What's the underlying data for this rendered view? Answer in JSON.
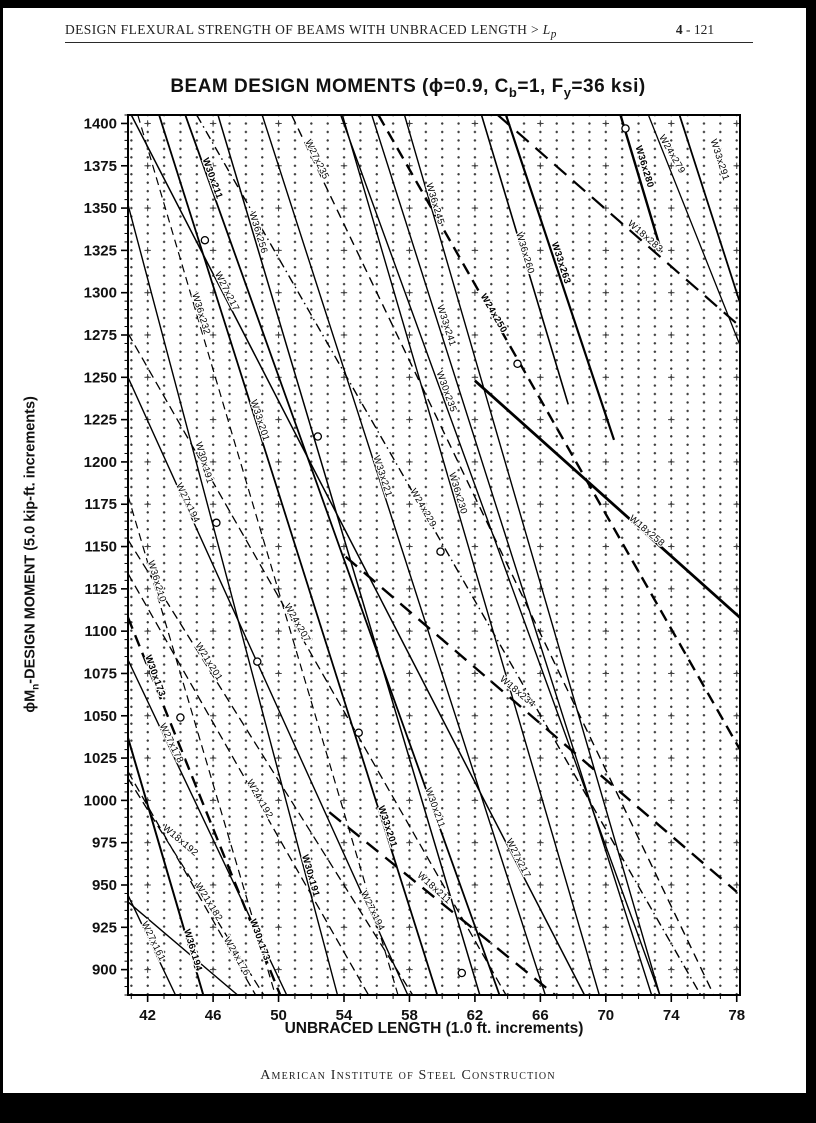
{
  "page": {
    "header": {
      "title_main": "DESIGN FLEXURAL STRENGTH OF BEAMS WITH UNBRACED LENGTH > ",
      "title_var": "L",
      "title_var_sub": "p",
      "page_number_bold": "4",
      "page_number_rest": " - 121"
    },
    "footer": {
      "text": "American Institute of Steel Construction"
    }
  },
  "chart": {
    "title": {
      "part1": "BEAM DESIGN MOMENTS (ϕ=0.9, C",
      "sub1": "b",
      "part2": "=1, F",
      "sub2": "y",
      "part3": "=36 ksi)"
    },
    "x_axis": {
      "label": "UNBRACED LENGTH (1.0 ft. increments)"
    },
    "y_axis": {
      "label_part1": "ϕM",
      "label_sub": "n",
      "label_part2": "-DESIGN MOMENT (5.0 kip-ft. increments)"
    }
  },
  "chart_data": {
    "type": "line",
    "title": "BEAM DESIGN MOMENTS (ϕ=0.9, Cb=1, Fy=36 ksi)",
    "xlabel": "UNBRACED LENGTH (1.0 ft. increments)",
    "ylabel": "ϕMn-DESIGN MOMENT (5.0 kip-ft. increments)",
    "xlim": [
      40.8,
      78.2
    ],
    "ylim": [
      885,
      1405
    ],
    "x_major_ticks": [
      42,
      46,
      50,
      54,
      58,
      62,
      66,
      70,
      74,
      78
    ],
    "x_minor_step": 1,
    "y_major_ticks": [
      900,
      925,
      950,
      975,
      1000,
      1025,
      1050,
      1075,
      1100,
      1125,
      1150,
      1175,
      1200,
      1225,
      1250,
      1275,
      1300,
      1325,
      1350,
      1375,
      1400
    ],
    "y_minor_step": 5,
    "grid": "dots at 1 ft x 5 kip-ft, plus marks at 4 ft x 25 kip-ft",
    "legend_position": "labels along curves",
    "series": [
      {
        "name": "W36x280",
        "style": "solid",
        "width": 2.4,
        "points": [
          [
            70.9,
            1405
          ],
          [
            73.4,
            1324
          ]
        ],
        "labels": [
          {
            "x": 72.2,
            "y": 1374,
            "rot": 73,
            "bold": true
          }
        ]
      },
      {
        "name": "W24x279",
        "style": "solid",
        "width": 1.3,
        "points": [
          [
            72.6,
            1405
          ],
          [
            78.2,
            1269
          ]
        ],
        "labels": [
          {
            "x": 73.9,
            "y": 1381,
            "rot": 60,
            "bold": false
          }
        ]
      },
      {
        "name": "W33x291",
        "style": "solid",
        "width": 1.8,
        "points": [
          [
            74.5,
            1405
          ],
          [
            78.2,
            1294
          ]
        ],
        "labels": [
          {
            "x": 76.8,
            "y": 1378,
            "rot": 72,
            "bold": false
          }
        ]
      },
      {
        "name": "W18x283",
        "style": "dashed",
        "dash": "16,9",
        "width": 2.2,
        "points": [
          [
            63.4,
            1405
          ],
          [
            78.2,
            1280
          ]
        ],
        "labels": [
          {
            "x": 72.3,
            "y": 1332,
            "rot": 41,
            "bold": false
          }
        ]
      },
      {
        "name": "W33x263",
        "style": "solid",
        "width": 2.2,
        "points": [
          [
            63.9,
            1405
          ],
          [
            70.5,
            1213
          ]
        ],
        "labels": [
          {
            "x": 67.1,
            "y": 1317,
            "rot": 72,
            "bold": true
          }
        ]
      },
      {
        "name": "W36x260",
        "style": "solid",
        "width": 1.6,
        "points": [
          [
            62.4,
            1405
          ],
          [
            67.7,
            1234
          ]
        ],
        "labels": [
          {
            "x": 64.9,
            "y": 1323,
            "rot": 73,
            "bold": false
          }
        ]
      },
      {
        "name": "W24x250",
        "style": "dashed",
        "dash": "12,7",
        "width": 2.4,
        "points": [
          [
            56.1,
            1405
          ],
          [
            78.2,
            1030
          ]
        ],
        "labels": [
          {
            "x": 63.0,
            "y": 1287,
            "rot": 60,
            "bold": true
          }
        ]
      },
      {
        "name": "W36x245",
        "style": "solid",
        "width": 1.4,
        "points": [
          [
            57.7,
            1405
          ],
          [
            73.3,
            885
          ]
        ],
        "labels": [
          {
            "x": 59.4,
            "y": 1352,
            "rot": 73,
            "bold": false
          }
        ]
      },
      {
        "name": "W33x241",
        "style": "solid",
        "width": 1.4,
        "points": [
          [
            55.7,
            1405
          ],
          [
            72.8,
            885
          ]
        ],
        "labels": [
          {
            "x": 60.1,
            "y": 1280,
            "rot": 72,
            "bold": false
          }
        ]
      },
      {
        "name": "W30x235",
        "style": "solid",
        "width": 1.4,
        "points": [
          [
            53.8,
            1405
          ],
          [
            73.3,
            885
          ]
        ],
        "labels": [
          {
            "x": 60.1,
            "y": 1241,
            "rot": 70,
            "bold": false
          }
        ]
      },
      {
        "name": "W36x230",
        "style": "solid",
        "width": 1.4,
        "points": [
          [
            53.9,
            1405
          ],
          [
            69.6,
            885
          ]
        ],
        "labels": [
          {
            "x": 60.8,
            "y": 1181,
            "rot": 73,
            "bold": false
          }
        ]
      },
      {
        "name": "W33x221",
        "style": "solid",
        "width": 1.4,
        "points": [
          [
            49.0,
            1405
          ],
          [
            66.3,
            885
          ]
        ],
        "labels": [
          {
            "x": 56.2,
            "y": 1191,
            "rot": 72,
            "bold": false
          }
        ]
      },
      {
        "name": "W24x229",
        "style": "dashdot",
        "width": 1.4,
        "points": [
          [
            45.0,
            1405
          ],
          [
            75.8,
            885
          ]
        ],
        "labels": [
          {
            "x": 58.7,
            "y": 1172,
            "rot": 60,
            "bold": false
          }
        ]
      },
      {
        "name": "W27x235",
        "style": "dashed",
        "dash": "9,6",
        "width": 1.4,
        "points": [
          [
            50.8,
            1405
          ],
          [
            76.6,
            885
          ]
        ],
        "labels": [
          {
            "x": 52.2,
            "y": 1378,
            "rot": 64,
            "bold": false
          }
        ]
      },
      {
        "name": "W36x256",
        "style": "solid",
        "width": 1.5,
        "points": [
          [
            46.3,
            1405
          ],
          [
            62.3,
            885
          ]
        ],
        "labels": [
          {
            "x": 48.6,
            "y": 1335,
            "rot": 73,
            "bold": false
          }
        ]
      },
      {
        "name": "W30x211",
        "style": "solid",
        "width": 1.8,
        "points": [
          [
            44.3,
            1405
          ],
          [
            63.5,
            885
          ]
        ],
        "labels": [
          {
            "x": 45.8,
            "y": 1367,
            "rot": 70,
            "bold": true
          },
          {
            "x": 59.4,
            "y": 995,
            "rot": 70,
            "bold": false
          }
        ]
      },
      {
        "name": "W27x217",
        "style": "solid",
        "width": 1.5,
        "points": [
          [
            41.0,
            1405
          ],
          [
            68.7,
            885
          ]
        ],
        "labels": [
          {
            "x": 46.7,
            "y": 1300,
            "rot": 63,
            "bold": false
          },
          {
            "x": 64.5,
            "y": 965,
            "rot": 63,
            "bold": false
          }
        ]
      },
      {
        "name": "W36x232",
        "style": "dashed",
        "dash": "8,5",
        "width": 1.2,
        "points": [
          [
            41.4,
            1405
          ],
          [
            57.3,
            885
          ]
        ],
        "labels": [
          {
            "x": 45.1,
            "y": 1287,
            "rot": 73,
            "bold": false
          }
        ]
      },
      {
        "name": "W33x201",
        "style": "solid",
        "width": 1.8,
        "points": [
          [
            42.7,
            1405
          ],
          [
            59.7,
            885
          ]
        ],
        "labels": [
          {
            "x": 48.7,
            "y": 1224,
            "rot": 72,
            "bold": false
          },
          {
            "x": 56.5,
            "y": 984,
            "rot": 72,
            "bold": true
          }
        ]
      },
      {
        "name": "W30x191",
        "style": "solid",
        "width": 1.4,
        "points": [
          [
            40.8,
            1352
          ],
          [
            53.6,
            885
          ]
        ],
        "labels": [
          {
            "x": 45.3,
            "y": 1199,
            "rot": 74,
            "bold": false
          },
          {
            "x": 51.8,
            "y": 955,
            "rot": 74,
            "bold": true
          }
        ]
      },
      {
        "name": "W27x194",
        "style": "solid",
        "width": 1.4,
        "points": [
          [
            40.8,
            1250
          ],
          [
            57.9,
            885
          ]
        ],
        "labels": [
          {
            "x": 44.3,
            "y": 1175,
            "rot": 64,
            "bold": false
          },
          {
            "x": 55.6,
            "y": 934,
            "rot": 64,
            "bold": false
          }
        ]
      },
      {
        "name": "W36x210",
        "style": "dashed",
        "dash": "8,5",
        "width": 1.2,
        "points": [
          [
            40.8,
            1180
          ],
          [
            49.8,
            885
          ]
        ],
        "labels": [
          {
            "x": 42.4,
            "y": 1129,
            "rot": 73,
            "bold": false
          }
        ]
      },
      {
        "name": "W30x173",
        "style": "dashed",
        "dash": "12,7",
        "width": 2.4,
        "points": [
          [
            40.8,
            1108
          ],
          [
            50.1,
            885
          ]
        ],
        "labels": [
          {
            "x": 42.3,
            "y": 1073,
            "rot": 70,
            "bold": true
          },
          {
            "x": 48.7,
            "y": 917,
            "rot": 70,
            "bold": true
          }
        ]
      },
      {
        "name": "W21x201",
        "style": "dashed",
        "dash": "9,5",
        "width": 1.3,
        "points": [
          [
            40.8,
            1154
          ],
          [
            58.2,
            885
          ]
        ],
        "labels": [
          {
            "x": 45.6,
            "y": 1081,
            "rot": 58,
            "bold": false
          }
        ]
      },
      {
        "name": "W24x207",
        "style": "dashed",
        "dash": "9,5",
        "width": 1.3,
        "points": [
          [
            40.8,
            1276
          ],
          [
            63.9,
            885
          ]
        ],
        "labels": [
          {
            "x": 51.0,
            "y": 1104,
            "rot": 60,
            "bold": false
          }
        ]
      },
      {
        "name": "W27x178",
        "style": "solid",
        "width": 1.4,
        "points": [
          [
            40.8,
            1083
          ],
          [
            50.5,
            885
          ]
        ],
        "labels": [
          {
            "x": 43.3,
            "y": 1033,
            "rot": 64,
            "bold": false
          }
        ]
      },
      {
        "name": "W18x258",
        "style": "solid",
        "width": 2.8,
        "points": [
          [
            62.0,
            1248
          ],
          [
            78.2,
            1108
          ]
        ],
        "labels": [
          {
            "x": 72.4,
            "y": 1158,
            "rot": 40,
            "bold": false
          }
        ]
      },
      {
        "name": "W18x234",
        "style": "dashed",
        "dash": "15,9",
        "width": 2.4,
        "points": [
          [
            54.1,
            1144
          ],
          [
            78.0,
            946
          ]
        ],
        "labels": [
          {
            "x": 64.5,
            "y": 1063,
            "rot": 40,
            "bold": false
          }
        ]
      },
      {
        "name": "W18x211",
        "style": "dashed",
        "dash": "15,9",
        "width": 2.4,
        "points": [
          [
            53.1,
            993
          ],
          [
            66.9,
            885
          ]
        ],
        "labels": [
          {
            "x": 59.4,
            "y": 947,
            "rot": 42,
            "bold": false
          }
        ]
      },
      {
        "name": "W18x192",
        "style": "solid",
        "width": 1.4,
        "points": [
          [
            40.8,
            940
          ],
          [
            47.5,
            885
          ]
        ],
        "labels": [
          {
            "x": 43.9,
            "y": 975,
            "rot": 40,
            "bold": false
          }
        ]
      },
      {
        "name": "W24x192",
        "style": "dashed",
        "dash": "9,5",
        "width": 1.3,
        "points": [
          [
            40.8,
            1134
          ],
          [
            55.5,
            885
          ]
        ],
        "labels": [
          {
            "x": 48.7,
            "y": 1000,
            "rot": 60,
            "bold": false
          }
        ]
      },
      {
        "name": "W21x182",
        "style": "dashed",
        "dash": "9,5",
        "width": 1.3,
        "points": [
          [
            40.8,
            1013
          ],
          [
            49.1,
            885
          ]
        ],
        "labels": [
          {
            "x": 45.6,
            "y": 939,
            "rot": 58,
            "bold": false
          }
        ]
      },
      {
        "name": "W27x161",
        "style": "solid",
        "width": 1.4,
        "points": [
          [
            40.8,
            944
          ],
          [
            43.7,
            885
          ]
        ],
        "labels": [
          {
            "x": 42.2,
            "y": 916,
            "rot": 64,
            "bold": false
          }
        ]
      },
      {
        "name": "W36x194",
        "style": "solid",
        "width": 2.0,
        "points": [
          [
            40.8,
            1037
          ],
          [
            45.4,
            885
          ]
        ],
        "labels": [
          {
            "x": 44.6,
            "y": 911,
            "rot": 73,
            "bold": true
          }
        ]
      },
      {
        "name": "W24x176",
        "style": "dashed",
        "dash": "9,5",
        "width": 1.3,
        "points": [
          [
            40.8,
            1017
          ],
          [
            48.6,
            885
          ]
        ],
        "labels": [
          {
            "x": 47.3,
            "y": 907,
            "rot": 60,
            "bold": false
          }
        ]
      }
    ],
    "markers": {
      "shape": "open-circle",
      "points": [
        [
          71.2,
          1397
        ],
        [
          45.5,
          1331
        ],
        [
          64.6,
          1258
        ],
        [
          52.4,
          1215
        ],
        [
          46.2,
          1164
        ],
        [
          59.9,
          1147
        ],
        [
          48.7,
          1082
        ],
        [
          44.0,
          1049
        ],
        [
          54.9,
          1040
        ],
        [
          61.2,
          898
        ]
      ]
    }
  }
}
